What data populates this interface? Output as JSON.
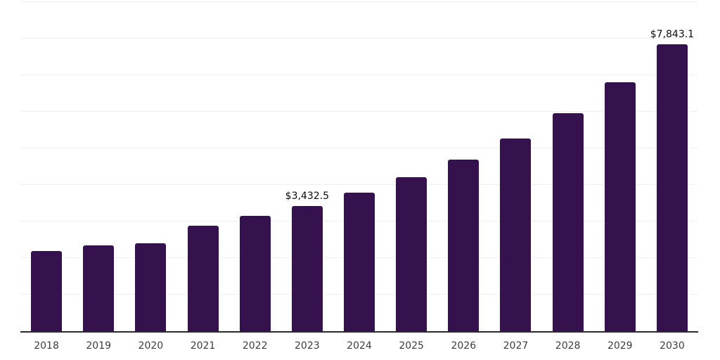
{
  "chart_data": {
    "type": "bar",
    "title": "",
    "xlabel": "",
    "ylabel": "",
    "categories": [
      "2018",
      "2019",
      "2020",
      "2021",
      "2022",
      "2023",
      "2024",
      "2025",
      "2026",
      "2027",
      "2028",
      "2029",
      "2030"
    ],
    "values": [
      2190,
      2345,
      2400,
      2880,
      3145,
      3432.5,
      3795,
      4215,
      4690,
      5260,
      5965,
      6805,
      7843.1
    ],
    "data_labels": [
      {
        "category": "2023",
        "text": "$3,432.5"
      },
      {
        "category": "2030",
        "text": "$7,843.1"
      }
    ],
    "ylim": [
      0,
      9000
    ],
    "gridline_step": 1000,
    "grid": "horizontal",
    "legend": "none",
    "y_tick_labels_visible": false,
    "colors": {
      "bar": "#35124e",
      "axis_line": "#2b2b2b",
      "gridline": "#f1f1f1",
      "tick_label": "#3d3d3d",
      "data_label": "#0a0a0a",
      "background": "#ffffff"
    }
  }
}
